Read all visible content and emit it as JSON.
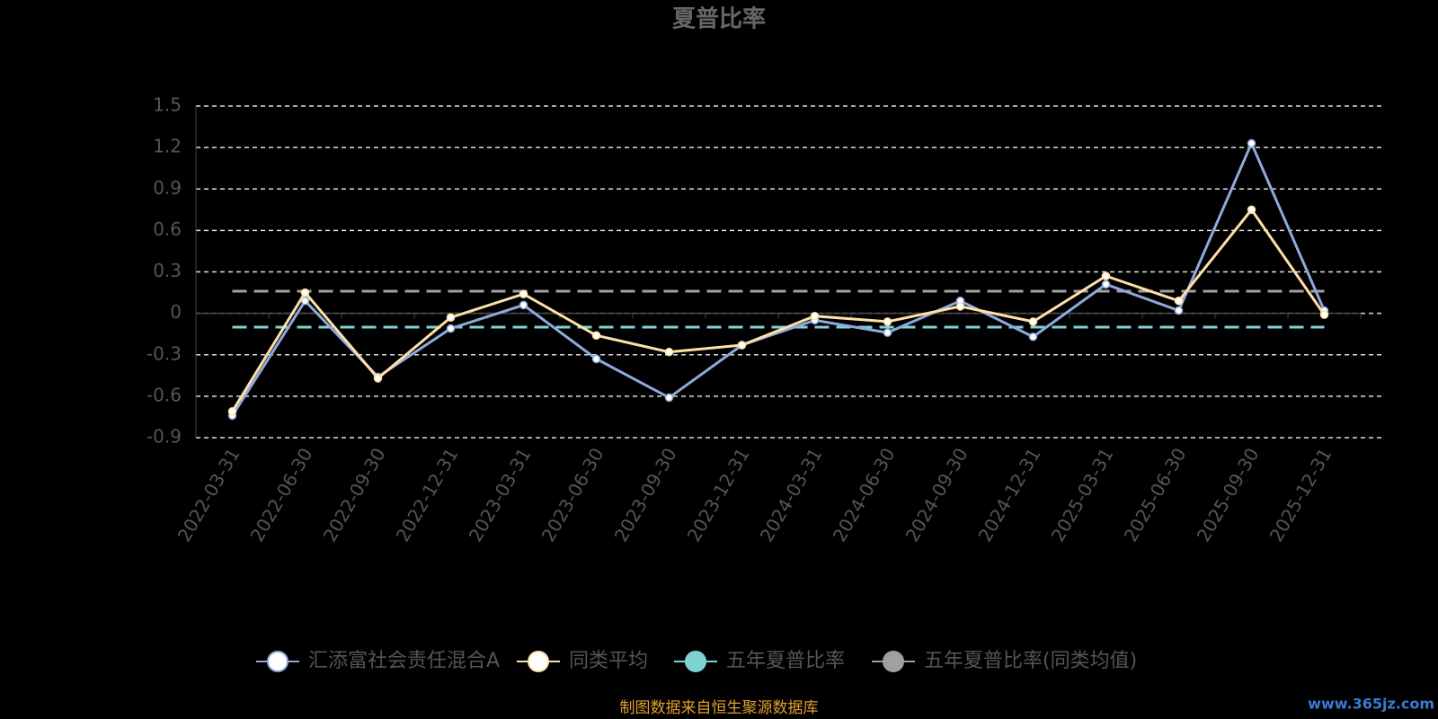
{
  "chart_data": {
    "type": "line",
    "title": "夏普比率",
    "categories": [
      "2022-03-31",
      "2022-06-30",
      "2022-09-30",
      "2022-12-31",
      "2023-03-31",
      "2023-06-30",
      "2023-09-30",
      "2023-12-31",
      "2024-03-31",
      "2024-06-30",
      "2024-09-30",
      "2024-12-31",
      "2025-03-31",
      "2025-06-30",
      "2025-09-30",
      "2025-12-31"
    ],
    "series": [
      {
        "name": "汇添富社会责任混合A",
        "color": "#8fa9dc",
        "values": [
          -0.74,
          0.09,
          -0.46,
          -0.11,
          0.06,
          -0.33,
          -0.61,
          -0.23,
          -0.05,
          -0.14,
          0.09,
          -0.17,
          0.21,
          0.02,
          1.23,
          0.02
        ]
      },
      {
        "name": "同类平均",
        "color": "#ffe0a6",
        "values": [
          -0.71,
          0.15,
          -0.47,
          -0.03,
          0.14,
          -0.16,
          -0.28,
          -0.23,
          -0.02,
          -0.06,
          0.05,
          -0.06,
          0.27,
          0.09,
          0.75,
          -0.01
        ]
      }
    ],
    "reference_lines": [
      {
        "name": "五年夏普比率",
        "color": "#7fd3d3",
        "value": -0.1
      },
      {
        "name": "五年夏普比率(同类均值)",
        "color": "#a0a0a0",
        "value": 0.16
      }
    ],
    "ylim": [
      -0.9,
      1.5
    ],
    "yticks": [
      1.5,
      1.2,
      0.9,
      0.6,
      0.3,
      0,
      -0.3,
      -0.6,
      -0.9
    ],
    "grid": true,
    "legend": "bottom",
    "footer": "制图数据来自恒生聚源数据库",
    "watermark": "www.365jz.com"
  }
}
